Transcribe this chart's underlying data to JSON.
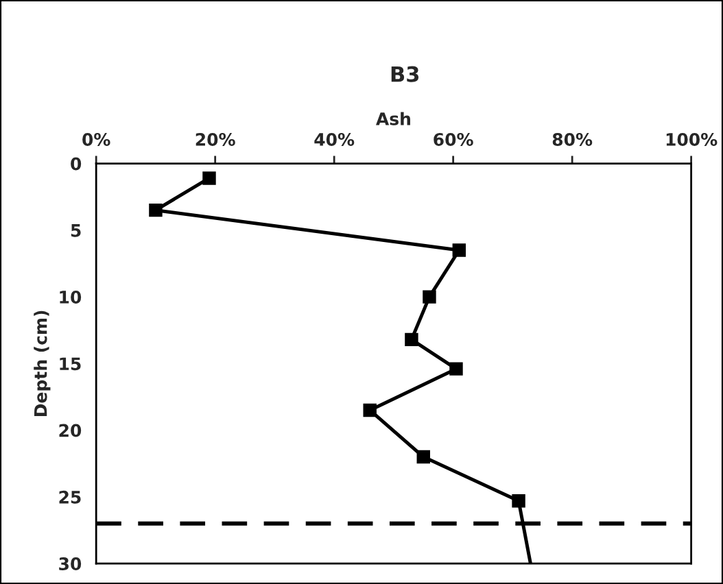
{
  "chart_data": {
    "type": "line",
    "title": "B3",
    "xlabel": "Ash",
    "ylabel": "Depth (cm)",
    "series": [
      {
        "color": "#000000",
        "marker": "square",
        "x": [
          19,
          10,
          61,
          56,
          53,
          60.5,
          46,
          55,
          71
        ],
        "values": [
          1.1,
          3.5,
          6.5,
          10,
          13.2,
          15.4,
          18.5,
          22,
          25.3
        ]
      },
      {
        "color": "#000000",
        "marker": "none",
        "x": [
          71,
          73
        ],
        "values": [
          25.3,
          30
        ]
      }
    ],
    "xlim": [
      0,
      100
    ],
    "xticks": [
      {
        "value": 0,
        "label": "0%"
      },
      {
        "value": 20,
        "label": "20%"
      },
      {
        "value": 40,
        "label": "40%"
      },
      {
        "value": 60,
        "label": "60%"
      },
      {
        "value": 80,
        "label": "80%"
      },
      {
        "value": 100,
        "label": "100%"
      }
    ],
    "ylim": [
      30,
      0
    ],
    "yticks": [
      0,
      5,
      10,
      15,
      20,
      25,
      30
    ],
    "ref_lines": [
      {
        "axis": "y",
        "value": 27,
        "color": "#000000",
        "line_style": "dashed"
      }
    ],
    "grid": false,
    "legend": false,
    "line_style": "solid"
  }
}
